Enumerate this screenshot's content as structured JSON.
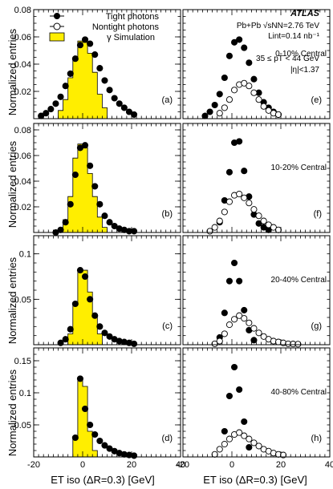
{
  "header": {
    "atlas": "ATLAS",
    "collision": "Pb+Pb",
    "energy": "√sNN=2.76 TeV",
    "lumi": "Lint=0.14 nb⁻¹",
    "pt_range": "35 ≤ pT < 44 GeV",
    "eta_range": "|η|<1.37"
  },
  "legend": {
    "tight": "Tight photons",
    "nontight": "Nontight photons",
    "sim": "γ Simulation"
  },
  "axes": {
    "ylabel": "Normalized entries",
    "xlabel": "ET iso (ΔR=0.3) [GeV]"
  },
  "colors": {
    "sim_fill": "#ffee00",
    "marker": "#000000"
  },
  "chart_data": [
    {
      "type": "scatter",
      "panel": "(a)",
      "centrality": "",
      "xlim": [
        -20,
        40
      ],
      "ylim": [
        0,
        0.08
      ],
      "yticks": [
        0.02,
        0.04,
        0.06,
        0.08
      ],
      "sim_hist": {
        "edges": [
          -10,
          -8,
          -6,
          -4,
          -2,
          0,
          2,
          4,
          6,
          8,
          10
        ],
        "values": [
          0.006,
          0.014,
          0.03,
          0.043,
          0.057,
          0.056,
          0.048,
          0.034,
          0.018,
          0.008
        ]
      },
      "series": [
        {
          "name": "Tight photons",
          "x": [
            -17,
            -15,
            -13,
            -11,
            -9,
            -7,
            -5,
            -3,
            -1,
            1,
            3,
            5,
            7,
            9,
            11,
            13,
            15,
            17,
            19,
            21
          ],
          "y": [
            0.002,
            0.004,
            0.007,
            0.011,
            0.016,
            0.024,
            0.033,
            0.044,
            0.054,
            0.058,
            0.055,
            0.047,
            0.037,
            0.028,
            0.021,
            0.015,
            0.011,
            0.008,
            0.005,
            0.003
          ]
        }
      ]
    },
    {
      "type": "scatter",
      "panel": "(e)",
      "centrality": "0-10% Central",
      "xlim": [
        -20,
        40
      ],
      "ylim": [
        0,
        0.08
      ],
      "series": [
        {
          "name": "Tight photons",
          "x": [
            -11,
            -9,
            -7,
            -5,
            -3,
            -1,
            1,
            3,
            5,
            7,
            9,
            11,
            13,
            15,
            17,
            19
          ],
          "y": [
            0.002,
            0.005,
            0.01,
            0.018,
            0.03,
            0.046,
            0.056,
            0.058,
            0.052,
            0.041,
            0.029,
            0.019,
            0.012,
            0.008,
            0.005,
            0.003
          ]
        },
        {
          "name": "Nontight photons",
          "x": [
            -5,
            -3,
            -1,
            1,
            3,
            5,
            7,
            9,
            11,
            13,
            15,
            17,
            19
          ],
          "y": [
            0.004,
            0.008,
            0.014,
            0.021,
            0.025,
            0.026,
            0.024,
            0.019,
            0.014,
            0.009,
            0.006,
            0.004,
            0.003
          ]
        }
      ]
    },
    {
      "type": "scatter",
      "panel": "(b)",
      "centrality": "",
      "xlim": [
        -20,
        40
      ],
      "ylim": [
        0,
        0.085
      ],
      "yticks": [
        0.02,
        0.04,
        0.06,
        0.08
      ],
      "sim_hist": {
        "edges": [
          -8,
          -6,
          -4,
          -2,
          0,
          2,
          4,
          6,
          8,
          10
        ],
        "values": [
          0.01,
          0.028,
          0.058,
          0.069,
          0.066,
          0.046,
          0.028,
          0.012,
          0.004
        ]
      },
      "series": [
        {
          "name": "Tight photons",
          "x": [
            -11,
            -9,
            -7,
            -5,
            -3,
            -1,
            1,
            3,
            5,
            7,
            9,
            11,
            13,
            15,
            17,
            19,
            21
          ],
          "y": [
            0.0,
            0.002,
            0.008,
            0.022,
            0.045,
            0.066,
            0.068,
            0.052,
            0.036,
            0.022,
            0.013,
            0.008,
            0.005,
            0.003,
            0.002,
            0.001,
            0.001
          ]
        }
      ]
    },
    {
      "type": "scatter",
      "panel": "(f)",
      "centrality": "10-20% Central",
      "xlim": [
        -20,
        40
      ],
      "ylim": [
        0,
        0.085
      ],
      "series": [
        {
          "name": "Tight photons",
          "x": [
            -5,
            -3,
            -1,
            1,
            3,
            5,
            7,
            9,
            11,
            13,
            15
          ],
          "y": [
            0.008,
            0.025,
            0.047,
            0.07,
            0.071,
            0.048,
            0.028,
            0.014,
            0.007,
            0.004,
            0.002
          ]
        },
        {
          "name": "Nontight photons",
          "x": [
            -9,
            -7,
            -5,
            -3,
            -1,
            1,
            3,
            5,
            7,
            9,
            11,
            13,
            15,
            17,
            19
          ],
          "y": [
            0.001,
            0.004,
            0.009,
            0.016,
            0.024,
            0.029,
            0.03,
            0.027,
            0.023,
            0.018,
            0.013,
            0.009,
            0.006,
            0.004,
            0.002
          ]
        }
      ]
    },
    {
      "type": "scatter",
      "panel": "(c)",
      "centrality": "",
      "xlim": [
        -20,
        40
      ],
      "ylim": [
        0,
        0.12
      ],
      "yticks": [
        0.05,
        0.1
      ],
      "sim_hist": {
        "edges": [
          -6,
          -4,
          -2,
          0,
          2,
          4,
          6,
          8
        ],
        "values": [
          0.012,
          0.045,
          0.08,
          0.082,
          0.058,
          0.032,
          0.012
        ]
      },
      "series": [
        {
          "name": "Tight photons",
          "x": [
            -9,
            -7,
            -5,
            -3,
            -1,
            1,
            3,
            5,
            7,
            9,
            11,
            13,
            15,
            17,
            19,
            21
          ],
          "y": [
            0.002,
            0.006,
            0.017,
            0.045,
            0.082,
            0.075,
            0.05,
            0.032,
            0.02,
            0.013,
            0.009,
            0.006,
            0.004,
            0.003,
            0.002,
            0.001
          ]
        }
      ]
    },
    {
      "type": "scatter",
      "panel": "(g)",
      "centrality": "20-40% Central",
      "xlim": [
        -20,
        40
      ],
      "ylim": [
        0,
        0.12
      ],
      "series": [
        {
          "name": "Tight photons",
          "x": [
            -5,
            -3,
            -1,
            1,
            3,
            5,
            7,
            9
          ],
          "y": [
            0.008,
            0.035,
            0.07,
            0.09,
            0.07,
            0.038,
            0.016,
            0.005
          ]
        },
        {
          "name": "Nontight photons",
          "x": [
            -7,
            -5,
            -3,
            -1,
            1,
            3,
            5,
            7,
            9,
            11,
            13,
            15,
            17,
            19,
            21,
            23,
            25,
            27
          ],
          "y": [
            0.001,
            0.004,
            0.012,
            0.022,
            0.028,
            0.032,
            0.029,
            0.024,
            0.018,
            0.013,
            0.009,
            0.006,
            0.004,
            0.003,
            0.002,
            0.001,
            0.0008,
            0.0006
          ]
        }
      ]
    },
    {
      "type": "scatter",
      "panel": "(d)",
      "centrality": "",
      "xlim": [
        -20,
        40
      ],
      "ylim": [
        0,
        0.17
      ],
      "yticks": [
        0.05,
        0.1,
        0.15
      ],
      "sim_hist": {
        "edges": [
          -4,
          -2,
          0,
          2,
          4,
          6
        ],
        "values": [
          0.03,
          0.12,
          0.11,
          0.04,
          0.01
        ]
      },
      "series": [
        {
          "name": "Tight photons",
          "x": [
            -3,
            -1,
            1,
            3,
            5,
            7,
            9,
            11,
            13,
            15,
            17,
            19,
            21
          ],
          "y": [
            0.03,
            0.122,
            0.075,
            0.05,
            0.035,
            0.025,
            0.018,
            0.013,
            0.009,
            0.006,
            0.004,
            0.003,
            0.002
          ]
        }
      ]
    },
    {
      "type": "scatter",
      "panel": "(h)",
      "centrality": "40-80% Central",
      "xlim": [
        -20,
        40
      ],
      "ylim": [
        0,
        0.17
      ],
      "series": [
        {
          "name": "Tight photons",
          "x": [
            -3,
            -1,
            1,
            3,
            5,
            7
          ],
          "y": [
            0.04,
            0.095,
            0.14,
            0.105,
            0.055,
            0.015
          ]
        },
        {
          "name": "Nontight photons",
          "x": [
            -7,
            -5,
            -3,
            -1,
            1,
            3,
            5,
            7,
            9,
            11,
            13,
            15,
            17,
            19,
            21
          ],
          "y": [
            0.004,
            0.012,
            0.02,
            0.028,
            0.035,
            0.038,
            0.033,
            0.028,
            0.022,
            0.017,
            0.012,
            0.009,
            0.006,
            0.004,
            0.003
          ]
        }
      ]
    }
  ]
}
